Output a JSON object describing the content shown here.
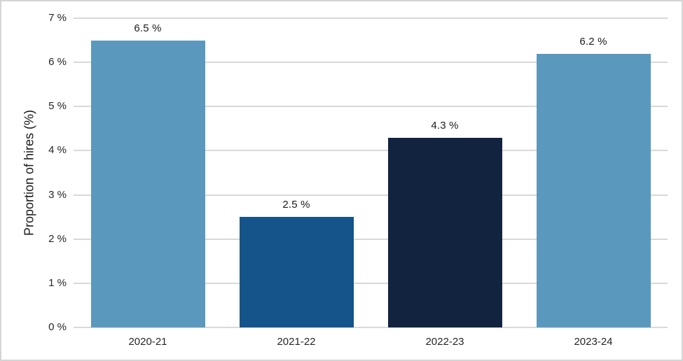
{
  "chart_data": {
    "type": "bar",
    "title": "",
    "categories": [
      "2020-21",
      "2021-22",
      "2022-23",
      "2023-24"
    ],
    "values": [
      6.5,
      2.5,
      4.3,
      6.2
    ],
    "value_labels": [
      "6.5 %",
      "2.5 %",
      "4.3 %",
      "6.2 %"
    ],
    "bar_colors": [
      "#5A99BD",
      "#15538B",
      "#12233F",
      "#5A99BD"
    ],
    "xlabel": "",
    "ylabel": "Proportion of hires (%)",
    "ylim": [
      0,
      7
    ],
    "ytick_interval": 1,
    "ytick_labels": [
      "0 %",
      "1 %",
      "2 %",
      "3 %",
      "4 %",
      "5 %",
      "6 %",
      "7 %"
    ],
    "grid": "horizontal",
    "legend": "none",
    "palette": {
      "light_blue": "#5A99BD",
      "medium_blue": "#15538B",
      "dark_navy": "#12233F",
      "gridline": "#D9D9D9",
      "axis_text": "#262626",
      "label_text": "#1A1A1A",
      "border": "#D5D5D5",
      "background": "#FFFFFF"
    }
  }
}
